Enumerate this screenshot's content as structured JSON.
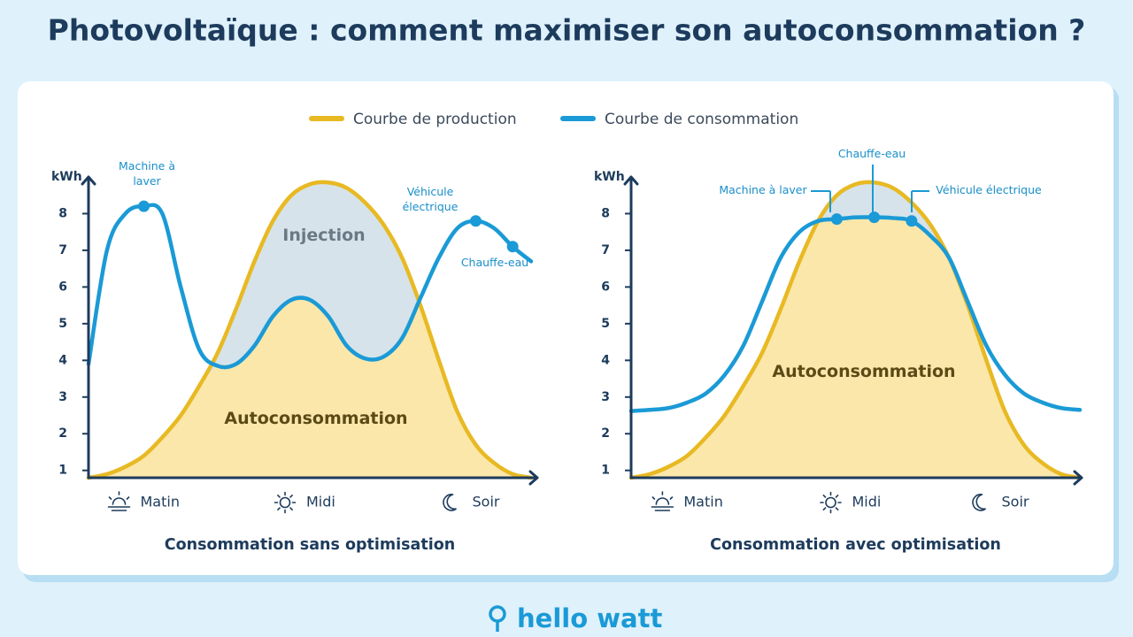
{
  "title": "Photovoltaïque : comment maximiser son autoconsommation ?",
  "legend": [
    {
      "name": "Courbe de production",
      "color": "#e8b923"
    },
    {
      "name": "Courbe de consommation",
      "color": "#1a9ad6"
    }
  ],
  "logo": "hello watt",
  "chart_data": [
    {
      "type": "line",
      "xlabel": "Consommation sans optimisation",
      "ylabel": "kWh",
      "categories": [
        null,
        null,
        null,
        "Matin",
        null,
        null,
        null,
        null,
        null,
        null,
        null,
        null,
        "Midi",
        null,
        null,
        null,
        null,
        null,
        null,
        null,
        null,
        "Soir",
        null,
        null,
        null
      ],
      "ylim": [
        0.8,
        9
      ],
      "yticks": [
        1,
        2,
        3,
        4,
        5,
        6,
        7,
        8
      ],
      "grid": false,
      "series": [
        {
          "color": "#e8b923",
          "values": [
            0.8,
            0.9,
            1.1,
            1.4,
            1.9,
            2.5,
            3.3,
            4.2,
            5.4,
            6.7,
            7.8,
            8.5,
            8.8,
            8.85,
            8.7,
            8.3,
            7.7,
            6.8,
            5.5,
            4.0,
            2.6,
            1.7,
            1.2,
            0.9,
            0.8
          ]
        },
        {
          "color": "#1a9ad6",
          "values": [
            3.9,
            7.0,
            8.0,
            8.2,
            8.0,
            6.0,
            4.3,
            3.85,
            3.9,
            4.4,
            5.2,
            5.65,
            5.65,
            5.2,
            4.4,
            4.05,
            4.1,
            4.6,
            5.7,
            6.8,
            7.6,
            7.8,
            7.6,
            7.1,
            6.7
          ]
        }
      ],
      "annotations": [
        "Machine à laver",
        "Véhicule électrique",
        "Chauffe-eau",
        "Injection",
        "Autoconsommation"
      ]
    },
    {
      "type": "line",
      "xlabel": "Consommation avec optimisation",
      "ylabel": "kWh",
      "categories": [
        null,
        null,
        null,
        "Matin",
        null,
        null,
        null,
        null,
        null,
        null,
        null,
        null,
        "Midi",
        null,
        null,
        null,
        null,
        null,
        null,
        null,
        "Soir",
        null,
        null,
        null,
        null
      ],
      "ylim": [
        0.8,
        9
      ],
      "yticks": [
        1,
        2,
        3,
        4,
        5,
        6,
        7,
        8
      ],
      "grid": false,
      "series": [
        {
          "color": "#e8b923",
          "values": [
            0.8,
            0.9,
            1.1,
            1.4,
            1.9,
            2.5,
            3.3,
            4.2,
            5.4,
            6.7,
            7.8,
            8.5,
            8.8,
            8.85,
            8.7,
            8.3,
            7.7,
            6.8,
            5.5,
            4.0,
            2.6,
            1.7,
            1.2,
            0.9,
            0.8
          ]
        },
        {
          "color": "#1a9ad6",
          "values": [
            2.62,
            2.65,
            2.7,
            2.85,
            3.1,
            3.6,
            4.4,
            5.6,
            6.8,
            7.5,
            7.8,
            7.85,
            7.9,
            7.9,
            7.88,
            7.8,
            7.4,
            6.8,
            5.6,
            4.4,
            3.6,
            3.1,
            2.85,
            2.7,
            2.65
          ]
        }
      ],
      "annotations": [
        "Machine à laver",
        "Chauffe-eau",
        "Véhicule électrique",
        "Autoconsommation"
      ]
    }
  ]
}
